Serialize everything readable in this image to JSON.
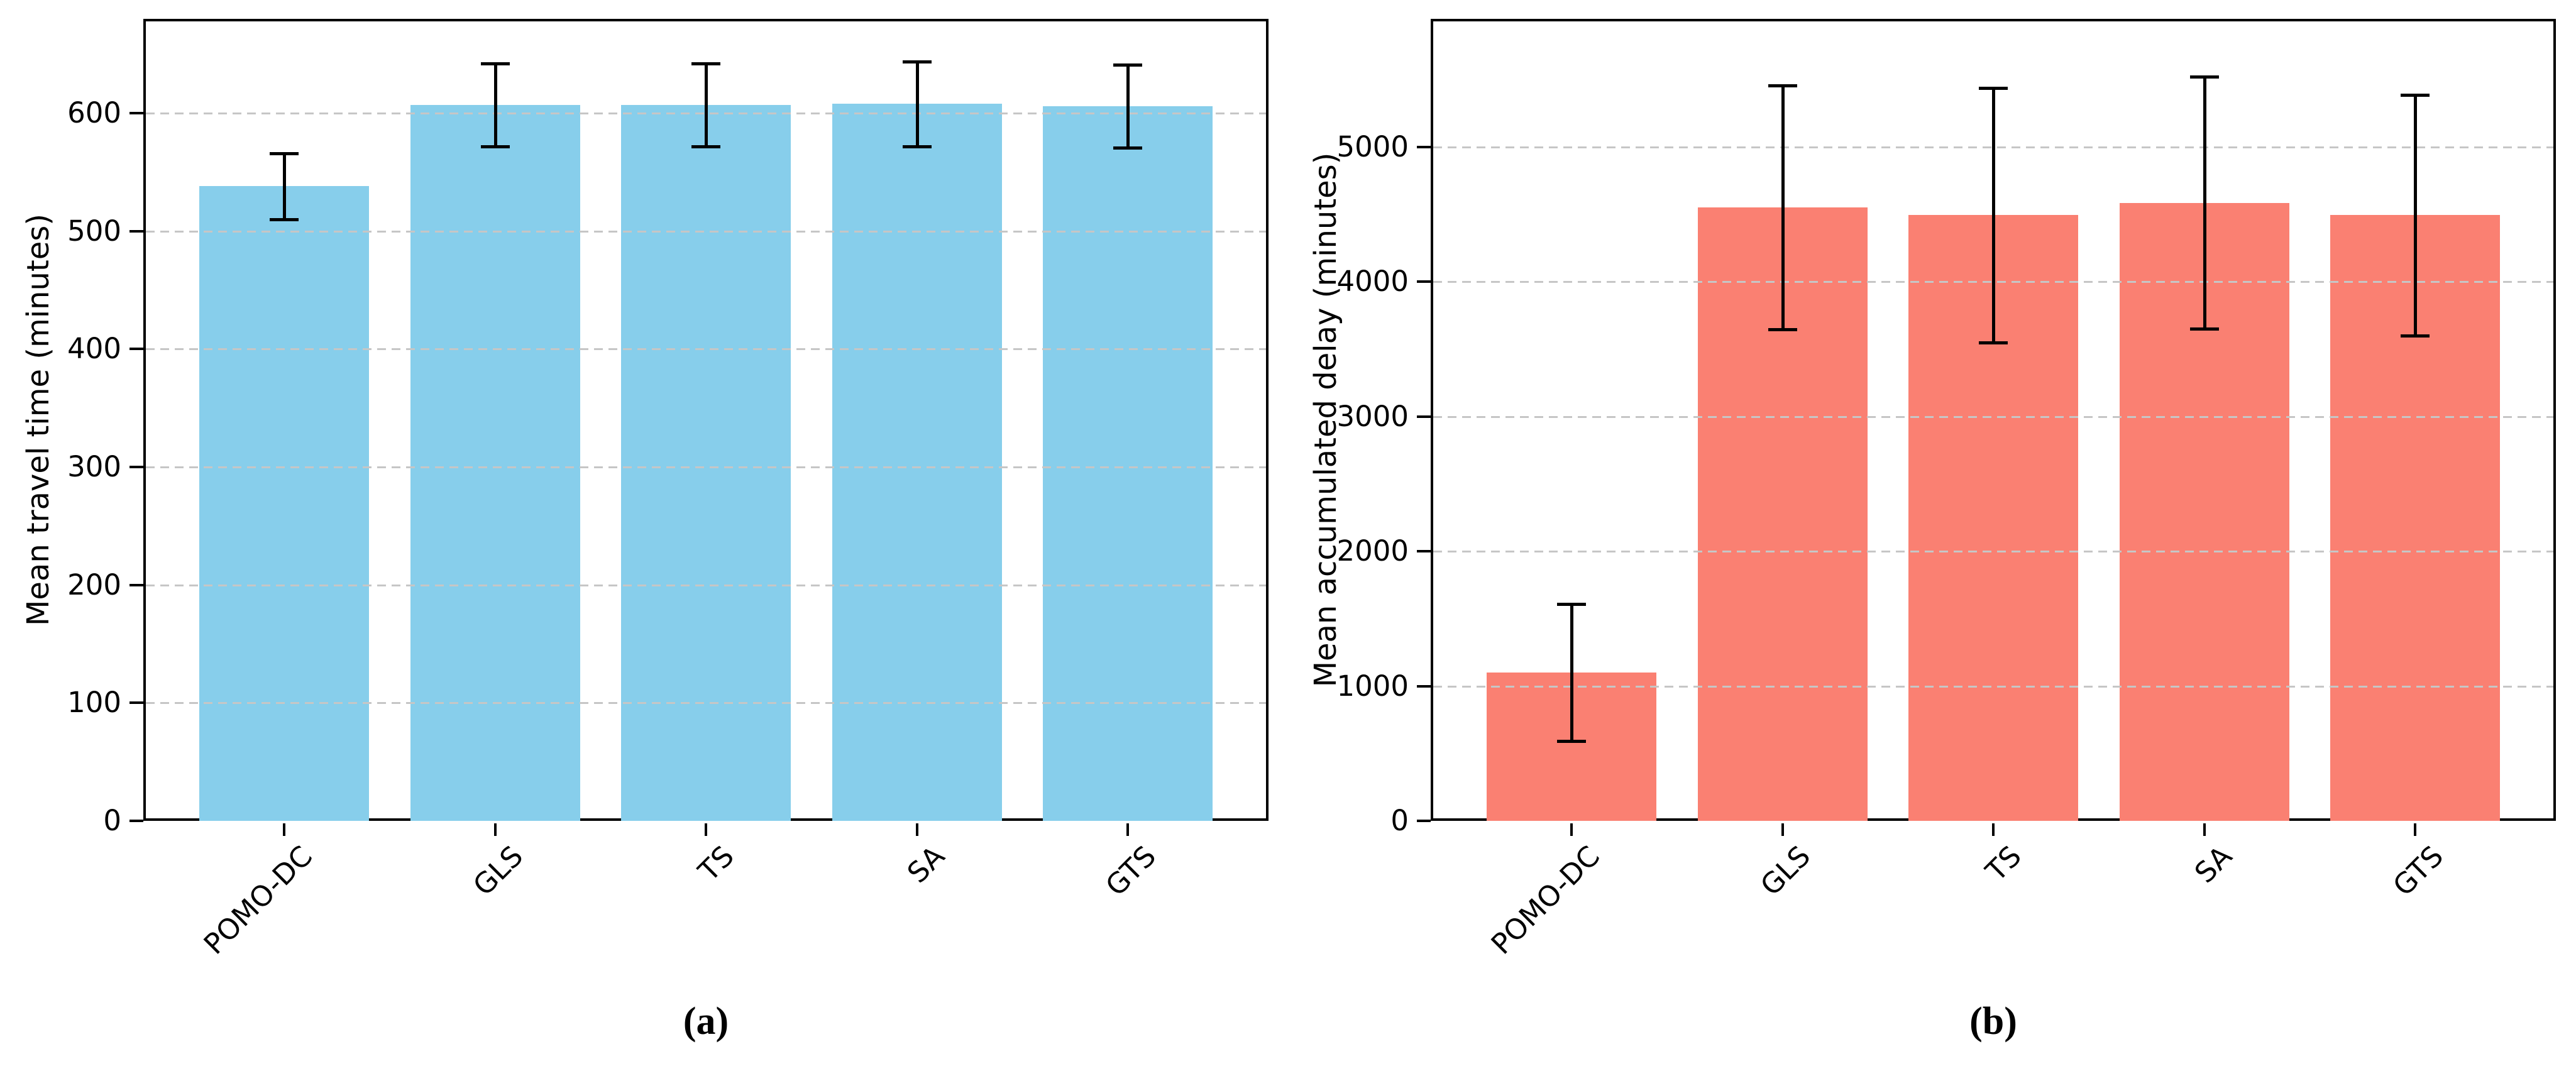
{
  "figure": {
    "background": "#ffffff",
    "axis_color": "#000000",
    "grid_color": "#c6c6c6",
    "error_bar_color": "#000000"
  },
  "chart_data": [
    {
      "id": "a",
      "type": "bar",
      "caption": "(a)",
      "ylabel": "Mean travel time (minutes)",
      "categories": [
        "POMO-DC",
        "GLS",
        "TS",
        "SA",
        "GTS"
      ],
      "values": [
        538,
        607,
        607,
        608,
        606
      ],
      "errors": [
        28,
        35,
        35,
        36,
        35
      ],
      "bar_color": "#87CEEB",
      "ylim": [
        0,
        680
      ],
      "yticks": [
        0,
        100,
        200,
        300,
        400,
        500,
        600
      ],
      "grid": "horizontal-dashed",
      "legend": "none"
    },
    {
      "id": "b",
      "type": "bar",
      "caption": "(b)",
      "ylabel": "Mean accumulated delay (minutes)",
      "categories": [
        "POMO-DC",
        "GLS",
        "TS",
        "SA",
        "GTS"
      ],
      "values": [
        1100,
        4553,
        4493,
        4586,
        4493
      ],
      "errors": [
        510,
        905,
        945,
        935,
        895
      ],
      "bar_color": "#FA8072",
      "ylim": [
        0,
        5950
      ],
      "yticks": [
        0,
        1000,
        2000,
        3000,
        4000,
        5000
      ],
      "grid": "horizontal-dashed",
      "legend": "none"
    }
  ]
}
